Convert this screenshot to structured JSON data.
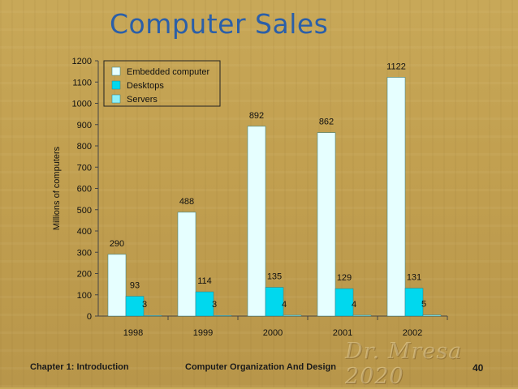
{
  "slide": {
    "title": "Computer Sales",
    "footer_left": "Chapter 1: Introduction",
    "footer_center": "Computer Organization And Design",
    "page_number": "40",
    "watermark": "Dr. Mresa 2020"
  },
  "colors": {
    "title": "#2b5fa8",
    "embedded": "#e6ffff",
    "desktops": "#00d8ee",
    "servers": "#8cf0f8"
  },
  "chart_data": {
    "type": "bar",
    "title": "",
    "xlabel": "",
    "ylabel": "Millions of computers",
    "ylim": [
      0,
      1200
    ],
    "yticks": [
      0,
      100,
      200,
      300,
      400,
      500,
      600,
      700,
      800,
      900,
      1000,
      1100,
      1200
    ],
    "categories": [
      "1998",
      "1999",
      "2000",
      "2001",
      "2002"
    ],
    "series": [
      {
        "name": "Embedded computer",
        "values": [
          290,
          488,
          892,
          862,
          1122
        ]
      },
      {
        "name": "Desktops",
        "values": [
          93,
          114,
          135,
          129,
          131
        ]
      },
      {
        "name": "Servers",
        "values": [
          3,
          3,
          4,
          4,
          5
        ]
      }
    ],
    "legend": "top-left",
    "grid": false
  }
}
